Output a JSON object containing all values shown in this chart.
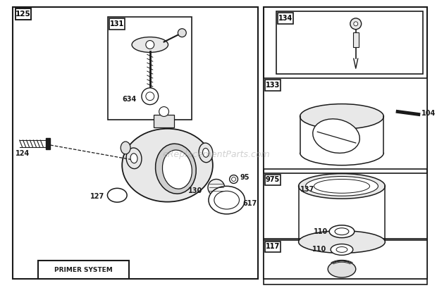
{
  "bg_color": "#ffffff",
  "border_color": "#1a1a1a",
  "watermark": "eReplacementParts.com",
  "parts_labels": {
    "124": "124",
    "125": "125",
    "127": "127",
    "130": "130",
    "95": "95",
    "617": "617",
    "131": "131",
    "634": "634",
    "134": "134",
    "133": "133",
    "104": "104",
    "975": "975",
    "137": "137",
    "110a": "110",
    "117": "117",
    "110b": "110"
  }
}
